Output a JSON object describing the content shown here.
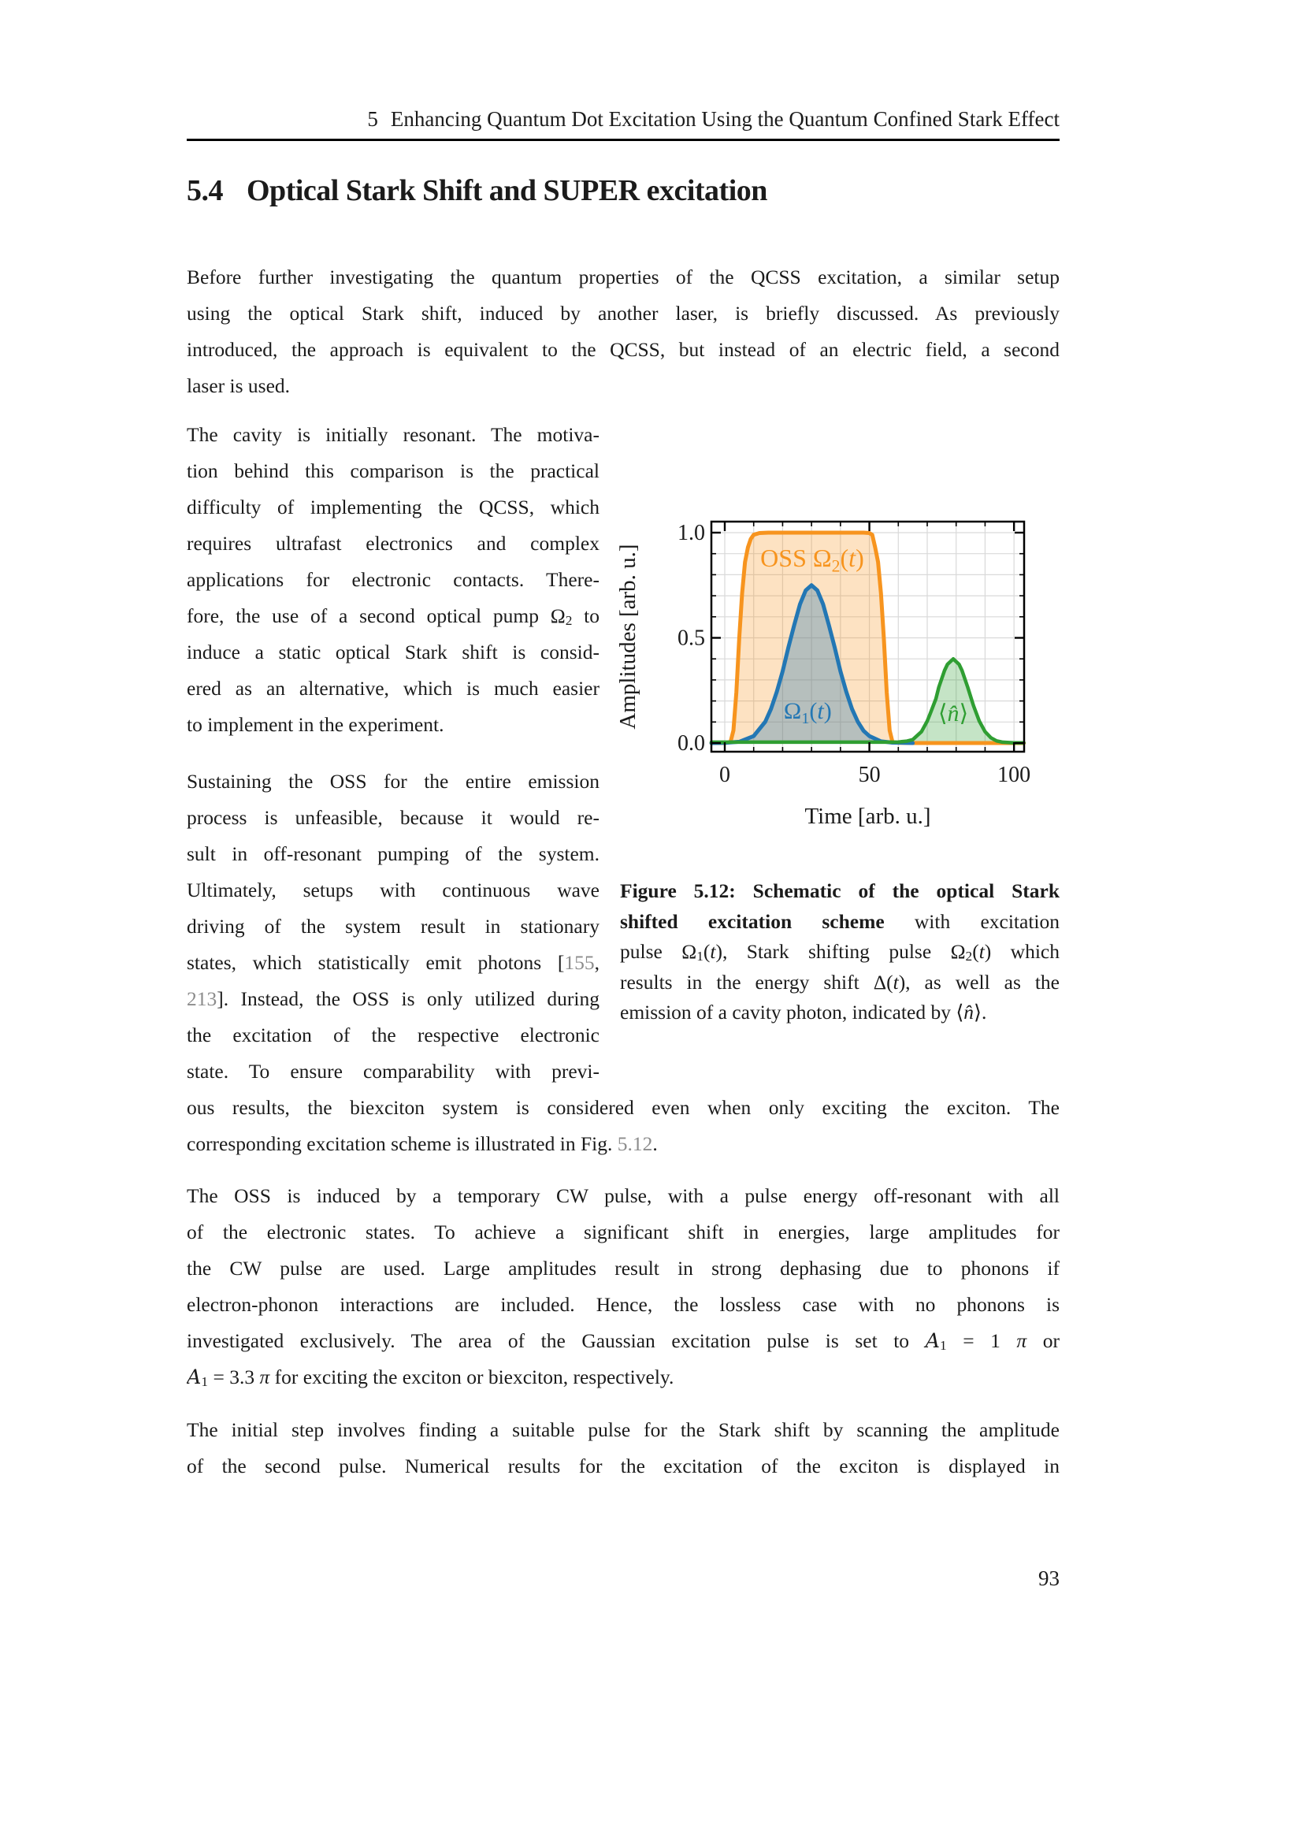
{
  "header": {
    "number": "5",
    "title": "Enhancing Quantum Dot Excitation Using the Quantum Confined Stark Effect"
  },
  "section": {
    "number": "5.4",
    "title": "Optical Stark Shift and SUPER excitation"
  },
  "page": {
    "number": "93"
  },
  "paragraphs": {
    "p1": [
      {
        "runs": [
          [
            "",
            "Before further investigating the quantum properties of the QCSS excitation, a similar setup"
          ]
        ]
      },
      {
        "runs": [
          [
            "",
            "using the optical Stark shift, induced by another laser, is briefly discussed. As previously"
          ]
        ]
      },
      {
        "runs": [
          [
            "",
            "introduced, the approach is equivalent to the QCSS, but instead of an electric field, a second"
          ]
        ]
      },
      {
        "runs": [
          [
            "",
            "laser is used."
          ]
        ],
        "last": true
      }
    ],
    "p2": [
      {
        "runs": [
          [
            "",
            "The cavity is initially resonant. The motiva-"
          ]
        ]
      },
      {
        "runs": [
          [
            "",
            "tion behind this comparison is the practical"
          ]
        ]
      },
      {
        "runs": [
          [
            "",
            "difficulty of implementing the QCSS, which"
          ]
        ]
      },
      {
        "runs": [
          [
            "",
            "requires ultrafast electronics and complex"
          ]
        ]
      },
      {
        "runs": [
          [
            "",
            "applications for electronic contacts. There-"
          ]
        ]
      },
      {
        "runs": [
          [
            "",
            "fore, the use of a second optical pump Ω"
          ],
          [
            "sub",
            "2"
          ],
          [
            "",
            " to"
          ]
        ]
      },
      {
        "runs": [
          [
            "",
            "induce a static optical Stark shift is consid-"
          ]
        ]
      },
      {
        "runs": [
          [
            "",
            "ered as an alternative, which is much easier"
          ]
        ]
      },
      {
        "runs": [
          [
            "",
            "to implement in the experiment."
          ]
        ],
        "last": true
      }
    ],
    "p3a": [
      {
        "runs": [
          [
            "",
            "Sustaining the OSS for the entire emission"
          ]
        ]
      },
      {
        "runs": [
          [
            "",
            "process is unfeasible, because it would re-"
          ]
        ]
      },
      {
        "runs": [
          [
            "",
            "sult in off-resonant pumping of the system."
          ]
        ]
      },
      {
        "runs": [
          [
            "",
            "Ultimately, setups with continuous wave"
          ]
        ]
      },
      {
        "runs": [
          [
            "",
            "driving of the system result in stationary"
          ]
        ]
      },
      {
        "runs": [
          [
            "",
            "states, which statistically emit photons ["
          ],
          [
            "g",
            "155"
          ],
          [
            "",
            ","
          ]
        ]
      },
      {
        "runs": [
          [
            "g",
            "213"
          ],
          [
            "",
            "]. Instead, the OSS is only utilized during"
          ]
        ]
      },
      {
        "runs": [
          [
            "",
            "the excitation of the respective electronic"
          ]
        ]
      },
      {
        "runs": [
          [
            "",
            "state. To ensure comparability with previ-"
          ]
        ]
      }
    ],
    "p3b": [
      {
        "runs": [
          [
            "",
            "ous results, the biexciton system is considered even when only exciting the exciton. The"
          ]
        ]
      },
      {
        "runs": [
          [
            "",
            "corresponding excitation scheme is illustrated in Fig. "
          ],
          [
            "g",
            "5.12"
          ],
          [
            "",
            "."
          ]
        ],
        "last": true
      }
    ],
    "p4": [
      {
        "runs": [
          [
            "",
            "The OSS is induced by a temporary CW pulse, with a pulse energy off-resonant with all"
          ]
        ]
      },
      {
        "runs": [
          [
            "",
            "of the electronic states. To achieve a significant shift in energies, large amplitudes for"
          ]
        ]
      },
      {
        "runs": [
          [
            "",
            "the CW pulse are used. Large amplitudes result in strong dephasing due to phonons if"
          ]
        ]
      },
      {
        "runs": [
          [
            "",
            "electron-phonon interactions are included. Hence, the lossless case with no phonons is"
          ]
        ]
      },
      {
        "runs": [
          [
            "",
            "investigated exclusively. The area of the Gaussian excitation pulse is set to "
          ],
          [
            "cal",
            "A"
          ],
          [
            "sub",
            "1"
          ],
          [
            "",
            " = 1 "
          ],
          [
            "i",
            "π"
          ],
          [
            "",
            " or"
          ]
        ]
      },
      {
        "runs": [
          [
            "cal",
            "A"
          ],
          [
            "sub",
            "1"
          ],
          [
            "",
            " = 3.3 "
          ],
          [
            "i",
            "π"
          ],
          [
            "",
            " for exciting the exciton or biexciton, respectively."
          ]
        ],
        "last": true
      }
    ],
    "p5": [
      {
        "runs": [
          [
            "",
            "The initial step involves finding a suitable pulse for the Stark shift by scanning the amplitude"
          ]
        ]
      },
      {
        "runs": [
          [
            "",
            "of the second pulse. Numerical results for the excitation of the exciton is displayed in"
          ]
        ]
      }
    ]
  },
  "figure_caption": [
    {
      "runs": [
        [
          "b",
          "Figure 5.12: Schematic of the optical Stark"
        ]
      ]
    },
    {
      "runs": [
        [
          "b",
          "shifted excitation scheme"
        ],
        [
          "",
          " with excitation"
        ]
      ]
    },
    {
      "runs": [
        [
          "",
          "pulse Ω"
        ],
        [
          "sub",
          "1"
        ],
        [
          "",
          "("
        ],
        [
          "i",
          "t"
        ],
        [
          "",
          "), Stark shifting pulse Ω"
        ],
        [
          "sub",
          "2"
        ],
        [
          "",
          "("
        ],
        [
          "i",
          "t"
        ],
        [
          "",
          ") which"
        ]
      ]
    },
    {
      "runs": [
        [
          "",
          "results in the energy shift Δ("
        ],
        [
          "i",
          "t"
        ],
        [
          "",
          "), as well as the"
        ]
      ]
    },
    {
      "runs": [
        [
          "",
          "emission of a cavity photon, indicated by ⟨"
        ],
        [
          "i",
          "n̂"
        ],
        [
          "",
          "⟩."
        ]
      ],
      "last": true
    }
  ],
  "chart_data": {
    "type": "line",
    "title": "",
    "xlabel": "Time [arb. u.]",
    "ylabel": "Amplitudes [arb. u.]",
    "xlim": [
      -4.63,
      103.5
    ],
    "ylim": [
      -0.0412,
      1.0524
    ],
    "xticks": [
      [
        0,
        "0"
      ],
      [
        50,
        "50"
      ],
      [
        100,
        "100"
      ]
    ],
    "yticks": [
      [
        0,
        "0.0"
      ],
      [
        0.5,
        "0.5"
      ],
      [
        1,
        "1.0"
      ]
    ],
    "minor_step_x": 10,
    "minor_step_y": 0.1,
    "grid": "minor",
    "grid_color": "#d9d9d9",
    "legend_position": "inline-labels",
    "series": [
      {
        "name": "OSS Ω2(t)",
        "color": "#f7941e",
        "width": 5,
        "fill_opacity": 0.27,
        "points": [
          [
            -4.6,
            0
          ],
          [
            0,
            0
          ],
          [
            2,
            0.005
          ],
          [
            3,
            0.06
          ],
          [
            4,
            0.24
          ],
          [
            5,
            0.5
          ],
          [
            6,
            0.71
          ],
          [
            7,
            0.86
          ],
          [
            8,
            0.93
          ],
          [
            9,
            0.97
          ],
          [
            10,
            0.99
          ],
          [
            12,
            0.998
          ],
          [
            15,
            1
          ],
          [
            20,
            1
          ],
          [
            25,
            1
          ],
          [
            30,
            1
          ],
          [
            35,
            1
          ],
          [
            40,
            1
          ],
          [
            45,
            1
          ],
          [
            48,
            1
          ],
          [
            50,
            0.998
          ],
          [
            51,
            0.99
          ],
          [
            52,
            0.93
          ],
          [
            53,
            0.86
          ],
          [
            54,
            0.71
          ],
          [
            55,
            0.5
          ],
          [
            56,
            0.24
          ],
          [
            57,
            0.06
          ],
          [
            58,
            0.005
          ],
          [
            60,
            0.001
          ],
          [
            65,
            0
          ],
          [
            80,
            0
          ],
          [
            103.4,
            0
          ]
        ]
      },
      {
        "name": "Ω1(t)",
        "color": "#2377b4",
        "width": 5,
        "fill_opacity": 0.32,
        "points": [
          [
            -4.6,
            0
          ],
          [
            0,
            0.001
          ],
          [
            5,
            0.006
          ],
          [
            10,
            0.033
          ],
          [
            14,
            0.101
          ],
          [
            16,
            0.162
          ],
          [
            18,
            0.244
          ],
          [
            20,
            0.34
          ],
          [
            22,
            0.455
          ],
          [
            24,
            0.56
          ],
          [
            26,
            0.66
          ],
          [
            28,
            0.726
          ],
          [
            30,
            0.75
          ],
          [
            32,
            0.726
          ],
          [
            34,
            0.66
          ],
          [
            36,
            0.56
          ],
          [
            38,
            0.455
          ],
          [
            40,
            0.34
          ],
          [
            42,
            0.244
          ],
          [
            44,
            0.162
          ],
          [
            46,
            0.101
          ],
          [
            48,
            0.058
          ],
          [
            50,
            0.033
          ],
          [
            54,
            0.008
          ],
          [
            58,
            0.002
          ],
          [
            62,
            0.001
          ],
          [
            65,
            0
          ]
        ]
      },
      {
        "name": "⟨n̂⟩",
        "color": "#2f9e32",
        "width": 4.5,
        "fill_opacity": 0.28,
        "points": [
          [
            -4.6,
            0.004
          ],
          [
            0,
            0.004
          ],
          [
            20,
            0.004
          ],
          [
            40,
            0.004
          ],
          [
            55,
            0.004
          ],
          [
            60,
            0.005
          ],
          [
            63,
            0.009
          ],
          [
            65,
            0.016
          ],
          [
            68,
            0.054
          ],
          [
            70,
            0.104
          ],
          [
            71,
            0.139
          ],
          [
            73,
            0.21
          ],
          [
            74,
            0.265
          ],
          [
            76,
            0.345
          ],
          [
            77,
            0.374
          ],
          [
            79,
            0.4
          ],
          [
            81,
            0.374
          ],
          [
            82,
            0.345
          ],
          [
            84,
            0.265
          ],
          [
            86,
            0.178
          ],
          [
            88,
            0.104
          ],
          [
            90,
            0.054
          ],
          [
            92,
            0.025
          ],
          [
            94,
            0.01
          ],
          [
            96,
            0.004
          ],
          [
            100,
            0.001
          ],
          [
            103.4,
            0.001
          ]
        ]
      }
    ],
    "labels": [
      {
        "runs": [
          [
            "",
            "OSS Ω"
          ],
          [
            "sub",
            "2"
          ],
          [
            "",
            "("
          ],
          [
            "i",
            "t"
          ],
          [
            "",
            ")"
          ]
        ],
        "t": 12.3,
        "v": 0.839,
        "anchor": "start",
        "size": 32,
        "color": "#f7941e"
      },
      {
        "runs": [
          [
            "",
            "Ω"
          ],
          [
            "sub",
            "1"
          ],
          [
            "",
            "("
          ],
          [
            "i",
            "t"
          ],
          [
            "",
            ")"
          ]
        ],
        "t": 20.4,
        "v": 0.116,
        "anchor": "start",
        "size": 30,
        "color": "#2377b4"
      },
      {
        "runs": [
          [
            "",
            "⟨"
          ],
          [
            "i",
            "n̂"
          ],
          [
            "",
            "⟩"
          ]
        ],
        "t": 79,
        "v": 0.105,
        "anchor": "middle",
        "size": 30,
        "color": "#2f9e32"
      }
    ]
  }
}
